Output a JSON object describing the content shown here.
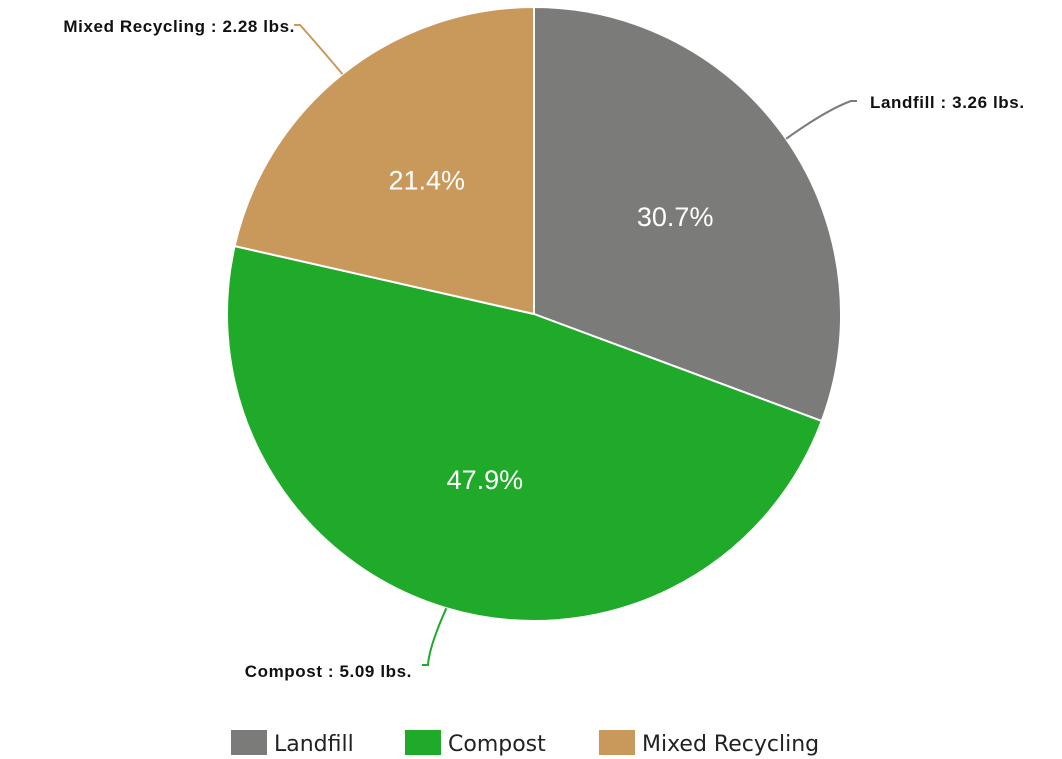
{
  "chart_data": {
    "type": "pie",
    "title": "",
    "unit": "lbs.",
    "slices": [
      {
        "name": "Landfill",
        "value": 3.26,
        "percent_label": "30.7%",
        "callout_label": "Landfill : 3.26 lbs.",
        "color": "#7b7c79"
      },
      {
        "name": "Compost",
        "value": 5.09,
        "percent_label": "47.9%",
        "callout_label": "Compost : 5.09 lbs.",
        "color": "#1faa2a"
      },
      {
        "name": "Mixed Recycling",
        "value": 2.28,
        "percent_label": "21.4%",
        "callout_label": "Mixed Recycling : 2.28 lbs.",
        "color": "#c9995c"
      }
    ],
    "legend": {
      "position": "bottom-center",
      "entries": [
        "Landfill",
        "Compost",
        "Mixed Recycling"
      ]
    }
  }
}
